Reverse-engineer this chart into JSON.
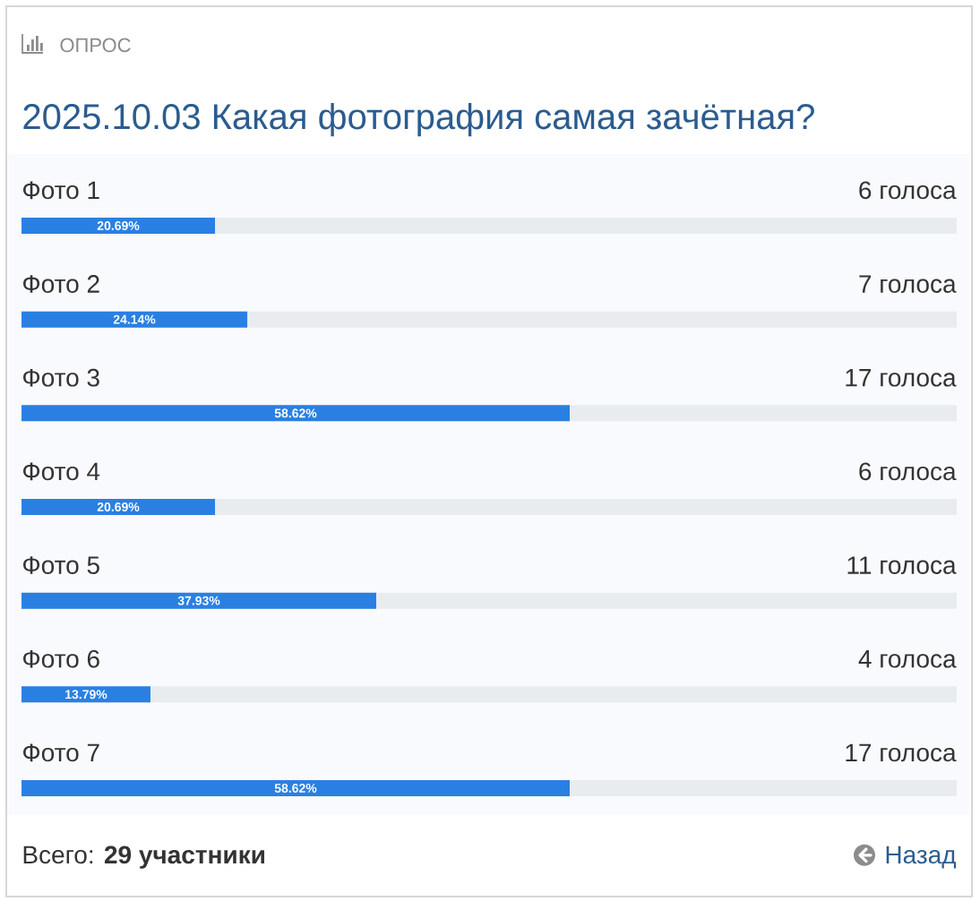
{
  "chart_data": {
    "type": "bar",
    "orientation": "horizontal",
    "subtitle": "ОПРОС",
    "title": "2025.10.03 Какая фотография самая зачётная?",
    "categories": [
      "Фото 1",
      "Фото 2",
      "Фото 3",
      "Фото 4",
      "Фото 5",
      "Фото 6",
      "Фото 7"
    ],
    "values": [
      20.69,
      24.14,
      58.62,
      20.69,
      37.93,
      13.79,
      58.62
    ],
    "value_labels": [
      "20.69%",
      "24.14%",
      "58.62%",
      "20.69%",
      "37.93%",
      "13.79%",
      "58.62%"
    ],
    "color": "#2a80e2",
    "xlim": [
      0,
      100
    ],
    "tick_labels": "y",
    "annotations": [
      "6 голоса",
      "7 голоса",
      "17 голоса",
      "6 голоса",
      "11 голоса",
      "4 голоса",
      "17 голоса",
      "Всего: **29 участники**",
      "Назад"
    ]
  }
}
